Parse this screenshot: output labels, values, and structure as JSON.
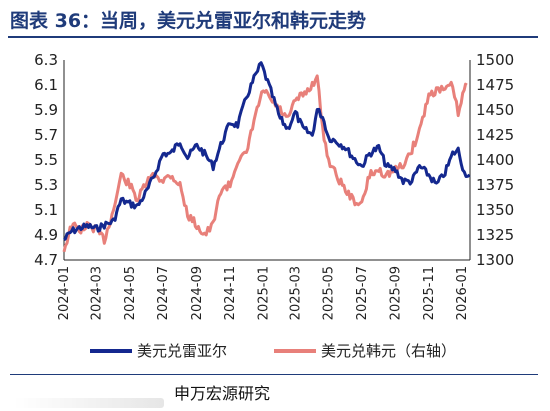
{
  "title": "图表 36：当周，美元兑雷亚尔和韩元走势",
  "footer": {
    "source": "申万宏源研究"
  },
  "colors": {
    "title": "#1f3b7a",
    "series_brl": "#14288f",
    "series_krw": "#e8807a"
  },
  "chart_data": {
    "type": "line",
    "grid": false,
    "legend_position": "bottom",
    "x_ticks": [
      "2024-01",
      "2024-03",
      "2024-05",
      "2024-07",
      "2024-09",
      "2024-11",
      "2025-01",
      "2025-03",
      "2025-05",
      "2025-07",
      "2025-09",
      "2025-11",
      "2026-01"
    ],
    "y_left": {
      "ticks": [
        "6.3",
        "6.1",
        "5.9",
        "5.7",
        "5.5",
        "5.3",
        "5.1",
        "4.9",
        "4.7"
      ],
      "lim": [
        4.7,
        6.3
      ]
    },
    "y_right": {
      "ticks": [
        "1500",
        "1475",
        "1450",
        "1425",
        "1400",
        "1375",
        "1350",
        "1325",
        "1300"
      ],
      "lim": [
        1300,
        1500
      ]
    },
    "series": [
      {
        "name": "美元兑雷亚尔",
        "axis": "left",
        "points": [
          [
            "2024-01-01",
            4.86
          ],
          [
            "2024-01-15",
            4.93
          ],
          [
            "2024-02-01",
            4.96
          ],
          [
            "2024-02-15",
            4.97
          ],
          [
            "2024-03-01",
            4.95
          ],
          [
            "2024-03-15",
            4.98
          ],
          [
            "2024-04-01",
            5.01
          ],
          [
            "2024-04-15",
            5.18
          ],
          [
            "2024-05-01",
            5.15
          ],
          [
            "2024-05-15",
            5.13
          ],
          [
            "2024-06-01",
            5.25
          ],
          [
            "2024-06-15",
            5.38
          ],
          [
            "2024-07-01",
            5.55
          ],
          [
            "2024-07-15",
            5.55
          ],
          [
            "2024-08-01",
            5.65
          ],
          [
            "2024-08-15",
            5.52
          ],
          [
            "2024-09-01",
            5.62
          ],
          [
            "2024-09-15",
            5.55
          ],
          [
            "2024-10-01",
            5.45
          ],
          [
            "2024-10-15",
            5.62
          ],
          [
            "2024-11-01",
            5.8
          ],
          [
            "2024-11-15",
            5.78
          ],
          [
            "2024-12-01",
            6.0
          ],
          [
            "2024-12-15",
            6.15
          ],
          [
            "2024-12-28",
            6.27
          ],
          [
            "2025-01-15",
            6.05
          ],
          [
            "2025-02-01",
            5.83
          ],
          [
            "2025-02-15",
            5.75
          ],
          [
            "2025-03-01",
            5.88
          ],
          [
            "2025-03-15",
            5.75
          ],
          [
            "2025-04-01",
            5.7
          ],
          [
            "2025-04-10",
            5.9
          ],
          [
            "2025-04-20",
            5.85
          ],
          [
            "2025-05-01",
            5.68
          ],
          [
            "2025-05-15",
            5.65
          ],
          [
            "2025-06-01",
            5.6
          ],
          [
            "2025-06-15",
            5.52
          ],
          [
            "2025-07-01",
            5.45
          ],
          [
            "2025-07-15",
            5.55
          ],
          [
            "2025-08-01",
            5.6
          ],
          [
            "2025-08-15",
            5.45
          ],
          [
            "2025-09-01",
            5.42
          ],
          [
            "2025-09-15",
            5.33
          ],
          [
            "2025-10-01",
            5.33
          ],
          [
            "2025-10-15",
            5.45
          ],
          [
            "2025-11-01",
            5.38
          ],
          [
            "2025-11-15",
            5.3
          ],
          [
            "2025-12-01",
            5.4
          ],
          [
            "2025-12-15",
            5.55
          ],
          [
            "2025-12-25",
            5.58
          ],
          [
            "2026-01-05",
            5.4
          ],
          [
            "2026-01-15",
            5.38
          ]
        ]
      },
      {
        "name": "美元兑韩元（右轴）",
        "axis": "right",
        "points": [
          [
            "2024-01-01",
            1310
          ],
          [
            "2024-01-15",
            1335
          ],
          [
            "2024-02-01",
            1330
          ],
          [
            "2024-02-15",
            1335
          ],
          [
            "2024-03-01",
            1330
          ],
          [
            "2024-03-15",
            1320
          ],
          [
            "2024-04-01",
            1350
          ],
          [
            "2024-04-15",
            1385
          ],
          [
            "2024-05-01",
            1375
          ],
          [
            "2024-05-15",
            1360
          ],
          [
            "2024-06-01",
            1378
          ],
          [
            "2024-06-15",
            1385
          ],
          [
            "2024-07-01",
            1380
          ],
          [
            "2024-07-15",
            1385
          ],
          [
            "2024-08-01",
            1375
          ],
          [
            "2024-08-15",
            1345
          ],
          [
            "2024-09-01",
            1335
          ],
          [
            "2024-09-15",
            1325
          ],
          [
            "2024-10-01",
            1335
          ],
          [
            "2024-10-15",
            1370
          ],
          [
            "2024-11-01",
            1375
          ],
          [
            "2024-11-15",
            1400
          ],
          [
            "2024-12-01",
            1405
          ],
          [
            "2024-12-15",
            1440
          ],
          [
            "2025-01-01",
            1470
          ],
          [
            "2025-01-15",
            1460
          ],
          [
            "2025-02-01",
            1450
          ],
          [
            "2025-02-15",
            1440
          ],
          [
            "2025-03-01",
            1460
          ],
          [
            "2025-03-15",
            1465
          ],
          [
            "2025-04-01",
            1475
          ],
          [
            "2025-04-10",
            1485
          ],
          [
            "2025-04-20",
            1430
          ],
          [
            "2025-05-01",
            1400
          ],
          [
            "2025-05-15",
            1385
          ],
          [
            "2025-06-01",
            1370
          ],
          [
            "2025-06-15",
            1360
          ],
          [
            "2025-07-01",
            1355
          ],
          [
            "2025-07-15",
            1385
          ],
          [
            "2025-08-01",
            1390
          ],
          [
            "2025-08-15",
            1385
          ],
          [
            "2025-09-01",
            1390
          ],
          [
            "2025-09-15",
            1395
          ],
          [
            "2025-10-01",
            1410
          ],
          [
            "2025-10-15",
            1430
          ],
          [
            "2025-11-01",
            1465
          ],
          [
            "2025-11-15",
            1470
          ],
          [
            "2025-12-01",
            1470
          ],
          [
            "2025-12-15",
            1475
          ],
          [
            "2025-12-25",
            1445
          ],
          [
            "2026-01-05",
            1470
          ],
          [
            "2026-01-10",
            1475
          ]
        ]
      }
    ]
  }
}
